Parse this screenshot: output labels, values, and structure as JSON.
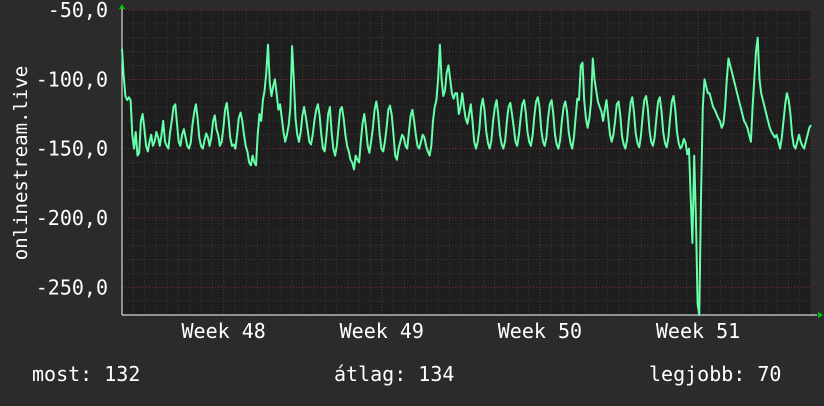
{
  "chart_data": {
    "type": "line",
    "ylabel": "onlinestream.live",
    "ylim": [
      -270,
      -50
    ],
    "yticks": [
      -50,
      -100,
      -150,
      -200,
      -250
    ],
    "ytick_labels": [
      "-50,0",
      "-100,0",
      "-150,0",
      "-200,0",
      "-250,0"
    ],
    "x_range_days": [
      0,
      30.5
    ],
    "xticks": [
      {
        "label": "Week 48",
        "day": 4.5
      },
      {
        "label": "Week 49",
        "day": 11.5
      },
      {
        "label": "Week 50",
        "day": 18.5
      },
      {
        "label": "Week 51",
        "day": 25.5
      }
    ],
    "grid": true,
    "line_color": "#66ffaa",
    "series": [
      {
        "values": [
          -78,
          -98,
          -112,
          -115,
          -113,
          -115,
          -140,
          -150,
          -138,
          -155,
          -153,
          -130,
          -125,
          -135,
          -148,
          -152,
          -145,
          -140,
          -148,
          -145,
          -138,
          -142,
          -148,
          -140,
          -130,
          -145,
          -148,
          -150,
          -138,
          -130,
          -120,
          -118,
          -132,
          -145,
          -148,
          -140,
          -136,
          -142,
          -148,
          -150,
          -146,
          -133,
          -124,
          -118,
          -128,
          -142,
          -148,
          -150,
          -144,
          -139,
          -142,
          -148,
          -142,
          -130,
          -126,
          -136,
          -140,
          -148,
          -145,
          -135,
          -122,
          -117,
          -128,
          -142,
          -148,
          -147,
          -150,
          -140,
          -128,
          -124,
          -130,
          -140,
          -148,
          -152,
          -160,
          -162,
          -155,
          -160,
          -162,
          -140,
          -125,
          -130,
          -115,
          -108,
          -95,
          -75,
          -103,
          -112,
          -105,
          -100,
          -110,
          -122,
          -118,
          -128,
          -138,
          -145,
          -140,
          -133,
          -120,
          -76,
          -100,
          -128,
          -140,
          -145,
          -138,
          -126,
          -120,
          -127,
          -136,
          -145,
          -147,
          -140,
          -130,
          -122,
          -118,
          -126,
          -140,
          -150,
          -152,
          -140,
          -125,
          -120,
          -138,
          -150,
          -155,
          -148,
          -135,
          -122,
          -120,
          -128,
          -140,
          -148,
          -152,
          -158,
          -160,
          -165,
          -155,
          -158,
          -160,
          -145,
          -132,
          -125,
          -135,
          -148,
          -153,
          -145,
          -135,
          -122,
          -116,
          -124,
          -140,
          -150,
          -152,
          -145,
          -135,
          -122,
          -119,
          -126,
          -140,
          -155,
          -158,
          -150,
          -145,
          -140,
          -142,
          -148,
          -150,
          -138,
          -126,
          -122,
          -130,
          -140,
          -148,
          -150,
          -145,
          -140,
          -142,
          -148,
          -152,
          -155,
          -148,
          -130,
          -120,
          -115,
          -100,
          -75,
          -100,
          -112,
          -108,
          -95,
          -90,
          -100,
          -110,
          -114,
          -110,
          -110,
          -125,
          -120,
          -110,
          -120,
          -128,
          -132,
          -125,
          -118,
          -130,
          -145,
          -150,
          -145,
          -136,
          -120,
          -114,
          -122,
          -138,
          -146,
          -150,
          -144,
          -130,
          -120,
          -115,
          -126,
          -140,
          -147,
          -150,
          -144,
          -130,
          -120,
          -117,
          -125,
          -135,
          -145,
          -148,
          -140,
          -128,
          -118,
          -115,
          -124,
          -138,
          -145,
          -148,
          -140,
          -126,
          -116,
          -113,
          -120,
          -136,
          -145,
          -148,
          -142,
          -128,
          -118,
          -115,
          -125,
          -140,
          -147,
          -150,
          -144,
          -130,
          -120,
          -116,
          -123,
          -138,
          -146,
          -150,
          -142,
          -128,
          -114,
          -115,
          -90,
          -88,
          -115,
          -128,
          -135,
          -128,
          -116,
          -85,
          -100,
          -108,
          -116,
          -120,
          -123,
          -130,
          -122,
          -115,
          -128,
          -140,
          -145,
          -140,
          -130,
          -118,
          -116,
          -126,
          -141,
          -147,
          -150,
          -143,
          -129,
          -117,
          -113,
          -124,
          -139,
          -146,
          -149,
          -141,
          -127,
          -115,
          -112,
          -121,
          -137,
          -145,
          -148,
          -142,
          -128,
          -116,
          -113,
          -123,
          -138,
          -146,
          -149,
          -142,
          -128,
          -116,
          -112,
          -122,
          -138,
          -146,
          -150,
          -148,
          -143,
          -146,
          -154,
          -150,
          -185,
          -218,
          -155,
          -200,
          -262,
          -270,
          -185,
          -120,
          -100,
          -105,
          -110,
          -110,
          -115,
          -120,
          -122,
          -125,
          -128,
          -130,
          -135,
          -132,
          -120,
          -100,
          -85,
          -90,
          -95,
          -100,
          -105,
          -110,
          -115,
          -120,
          -125,
          -130,
          -132,
          -135,
          -140,
          -145,
          -120,
          -100,
          -80,
          -70,
          -100,
          -110,
          -115,
          -120,
          -125,
          -130,
          -135,
          -138,
          -140,
          -142,
          -140,
          -145,
          -150,
          -142,
          -130,
          -118,
          -110,
          -115,
          -125,
          -140,
          -148,
          -150,
          -145,
          -140,
          -145,
          -148,
          -150,
          -145,
          -140,
          -135,
          -133
        ]
      }
    ]
  },
  "footer": {
    "current": "most: 132",
    "average": "átlag: 134",
    "best": "legjobb: 70"
  }
}
